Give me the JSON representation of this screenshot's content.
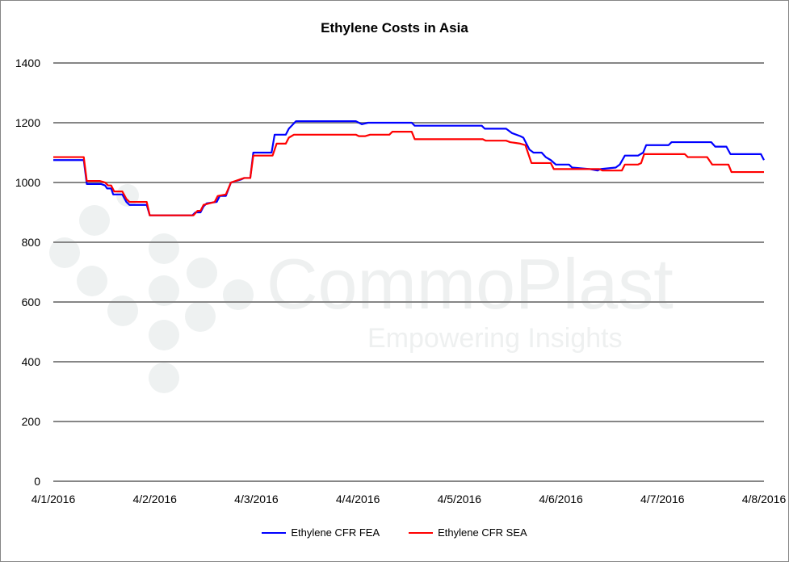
{
  "watermark": {
    "brand": "CommoPlast",
    "tagline": "Empowering Insights"
  },
  "chart_data": {
    "type": "line",
    "title": "Ethylene Costs in Asia",
    "xlabel": "",
    "ylabel": "",
    "x_tick_labels": [
      "4/1/2016",
      "4/2/2016",
      "4/3/2016",
      "4/4/2016",
      "4/5/2016",
      "4/6/2016",
      "4/7/2016",
      "4/8/2016"
    ],
    "xlim": [
      0,
      7
    ],
    "ylim": [
      0,
      1400
    ],
    "y_ticks": [
      0,
      200,
      400,
      600,
      800,
      1000,
      1200,
      1400
    ],
    "grid": "horizontal",
    "legend": "bottom",
    "series": [
      {
        "name": "Ethylene CFR FEA",
        "color": "#0000FF",
        "points": [
          [
            0,
            1075
          ],
          [
            0.3,
            1075
          ],
          [
            0.33,
            995
          ],
          [
            0.47,
            995
          ],
          [
            0.51,
            990
          ],
          [
            0.53,
            980
          ],
          [
            0.57,
            980
          ],
          [
            0.59,
            960
          ],
          [
            0.68,
            960
          ],
          [
            0.72,
            935
          ],
          [
            0.75,
            925
          ],
          [
            0.92,
            925
          ],
          [
            0.95,
            890
          ],
          [
            1.37,
            890
          ],
          [
            1.4,
            900
          ],
          [
            1.45,
            900
          ],
          [
            1.48,
            920
          ],
          [
            1.51,
            930
          ],
          [
            1.61,
            935
          ],
          [
            1.64,
            955
          ],
          [
            1.7,
            955
          ],
          [
            1.75,
            1000
          ],
          [
            1.85,
            1010
          ],
          [
            1.88,
            1015
          ],
          [
            1.94,
            1015
          ],
          [
            1.97,
            1100
          ],
          [
            2.15,
            1100
          ],
          [
            2.18,
            1160
          ],
          [
            2.29,
            1160
          ],
          [
            2.32,
            1180
          ],
          [
            2.39,
            1205
          ],
          [
            2.98,
            1205
          ],
          [
            3.04,
            1195
          ],
          [
            3.1,
            1200
          ],
          [
            3.53,
            1200
          ],
          [
            3.56,
            1190
          ],
          [
            4.22,
            1190
          ],
          [
            4.25,
            1180
          ],
          [
            4.46,
            1180
          ],
          [
            4.52,
            1165
          ],
          [
            4.6,
            1155
          ],
          [
            4.63,
            1150
          ],
          [
            4.69,
            1110
          ],
          [
            4.73,
            1100
          ],
          [
            4.81,
            1100
          ],
          [
            4.85,
            1085
          ],
          [
            4.9,
            1075
          ],
          [
            4.95,
            1060
          ],
          [
            5.08,
            1060
          ],
          [
            5.11,
            1050
          ],
          [
            5.28,
            1045
          ],
          [
            5.36,
            1040
          ],
          [
            5.39,
            1045
          ],
          [
            5.54,
            1050
          ],
          [
            5.58,
            1060
          ],
          [
            5.63,
            1090
          ],
          [
            5.76,
            1090
          ],
          [
            5.81,
            1100
          ],
          [
            5.84,
            1125
          ],
          [
            6.06,
            1125
          ],
          [
            6.09,
            1135
          ],
          [
            6.48,
            1135
          ],
          [
            6.52,
            1120
          ],
          [
            6.63,
            1120
          ],
          [
            6.67,
            1095
          ],
          [
            6.97,
            1095
          ],
          [
            7.0,
            1075
          ]
        ]
      },
      {
        "name": "Ethylene CFR SEA",
        "color": "#FF0000",
        "points": [
          [
            0,
            1085
          ],
          [
            0.3,
            1085
          ],
          [
            0.33,
            1005
          ],
          [
            0.46,
            1005
          ],
          [
            0.51,
            1000
          ],
          [
            0.54,
            990
          ],
          [
            0.57,
            990
          ],
          [
            0.6,
            970
          ],
          [
            0.68,
            970
          ],
          [
            0.72,
            945
          ],
          [
            0.75,
            935
          ],
          [
            0.92,
            935
          ],
          [
            0.95,
            890
          ],
          [
            1.38,
            890
          ],
          [
            1.42,
            905
          ],
          [
            1.45,
            905
          ],
          [
            1.48,
            925
          ],
          [
            1.59,
            935
          ],
          [
            1.62,
            955
          ],
          [
            1.7,
            960
          ],
          [
            1.75,
            1000
          ],
          [
            1.88,
            1015
          ],
          [
            1.94,
            1015
          ],
          [
            1.97,
            1090
          ],
          [
            2.16,
            1090
          ],
          [
            2.2,
            1130
          ],
          [
            2.29,
            1130
          ],
          [
            2.32,
            1150
          ],
          [
            2.37,
            1160
          ],
          [
            2.98,
            1160
          ],
          [
            3.01,
            1155
          ],
          [
            3.07,
            1155
          ],
          [
            3.12,
            1160
          ],
          [
            3.31,
            1160
          ],
          [
            3.34,
            1170
          ],
          [
            3.53,
            1170
          ],
          [
            3.56,
            1145
          ],
          [
            4.23,
            1145
          ],
          [
            4.26,
            1140
          ],
          [
            4.46,
            1140
          ],
          [
            4.5,
            1135
          ],
          [
            4.6,
            1130
          ],
          [
            4.65,
            1125
          ],
          [
            4.71,
            1065
          ],
          [
            4.9,
            1065
          ],
          [
            4.93,
            1045
          ],
          [
            5.38,
            1045
          ],
          [
            5.41,
            1040
          ],
          [
            5.6,
            1040
          ],
          [
            5.63,
            1060
          ],
          [
            5.76,
            1060
          ],
          [
            5.79,
            1065
          ],
          [
            5.82,
            1095
          ],
          [
            6.22,
            1095
          ],
          [
            6.25,
            1085
          ],
          [
            6.44,
            1085
          ],
          [
            6.49,
            1060
          ],
          [
            6.65,
            1060
          ],
          [
            6.68,
            1035
          ],
          [
            7.0,
            1035
          ]
        ]
      }
    ]
  }
}
